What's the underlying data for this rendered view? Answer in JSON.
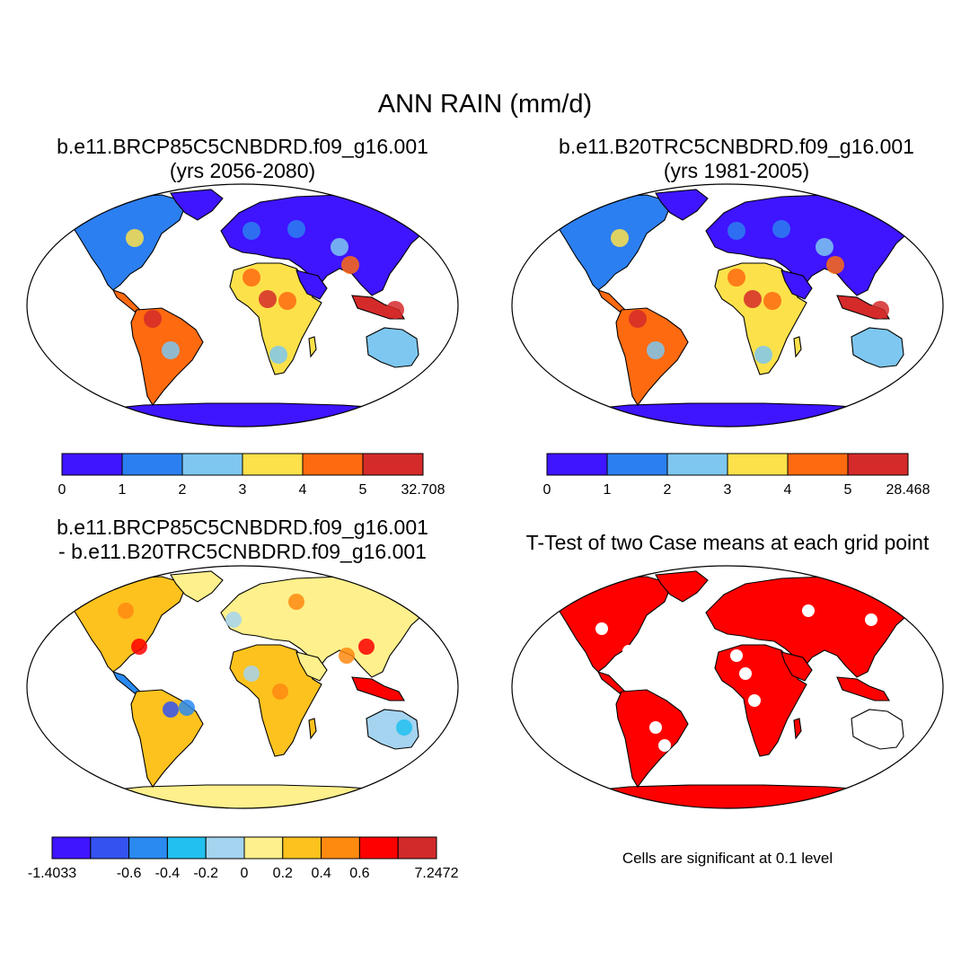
{
  "title": "ANN RAIN (mm/d)",
  "panels": [
    {
      "id": "p1",
      "title_line1": "b.e11.BRCP85C5CNBDRD.f09_g16.001",
      "title_line2": "(yrs 2056-2080)",
      "colorbar": {
        "colors": [
          "#3f14ff",
          "#2c7ff0",
          "#7ec7f0",
          "#fde14a",
          "#fe6a10",
          "#d52a2a"
        ],
        "labels": [
          "0",
          "1",
          "2",
          "3",
          "4",
          "5",
          "32.708"
        ]
      }
    },
    {
      "id": "p2",
      "title_line1": "b.e11.B20TRC5CNBDRD.f09_g16.001",
      "title_line2": "(yrs 1981-2005)",
      "colorbar": {
        "colors": [
          "#3f14ff",
          "#2c7ff0",
          "#7ec7f0",
          "#fde14a",
          "#fe6a10",
          "#d52a2a"
        ],
        "labels": [
          "0",
          "1",
          "2",
          "3",
          "4",
          "5",
          "28.468"
        ]
      }
    },
    {
      "id": "p3",
      "title_line1": "b.e11.BRCP85C5CNBDRD.f09_g16.001",
      "title_line2": "- b.e11.B20TRC5CNBDRD.f09_g16.001",
      "colorbar": {
        "colors": [
          "#3f14ff",
          "#3352f0",
          "#2a8af0",
          "#22c0f0",
          "#a4d4f0",
          "#fef08c",
          "#fdc21e",
          "#ff8a10",
          "#fe0000",
          "#d22a2a"
        ],
        "labels": [
          "-1.4033",
          "",
          "-0.6",
          "-0.4",
          "-0.2",
          "0",
          "0.2",
          "0.4",
          "0.6",
          "",
          "7.2472"
        ]
      }
    },
    {
      "id": "p4",
      "title": "T-Test of two Case means at each grid point",
      "note": "Cells are significant at 0.1 level",
      "fill_color": "#ff0000"
    }
  ]
}
